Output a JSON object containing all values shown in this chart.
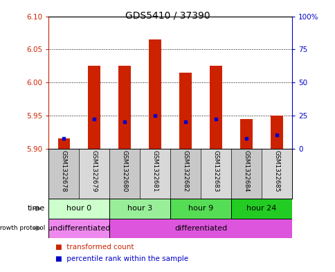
{
  "title": "GDS5410 / 37390",
  "samples": [
    "GSM1322678",
    "GSM1322679",
    "GSM1322680",
    "GSM1322681",
    "GSM1322682",
    "GSM1322683",
    "GSM1322684",
    "GSM1322685"
  ],
  "transformed_count": [
    5.915,
    6.025,
    6.025,
    6.065,
    6.015,
    6.025,
    5.945,
    5.95
  ],
  "percentile_rank": [
    5.915,
    5.945,
    5.94,
    5.95,
    5.94,
    5.945,
    5.915,
    5.92
  ],
  "bar_base": 5.9,
  "ylim": [
    5.9,
    6.1
  ],
  "yticks_left": [
    5.9,
    5.95,
    6.0,
    6.05,
    6.1
  ],
  "yticks_right": [
    0,
    25,
    50,
    75,
    100
  ],
  "time_groups": [
    {
      "label": "hour 0",
      "start": 0,
      "end": 2,
      "color": "#ccffcc"
    },
    {
      "label": "hour 3",
      "start": 2,
      "end": 4,
      "color": "#99ee99"
    },
    {
      "label": "hour 9",
      "start": 4,
      "end": 6,
      "color": "#55dd55"
    },
    {
      "label": "hour 24",
      "start": 6,
      "end": 8,
      "color": "#22cc22"
    }
  ],
  "protocol_groups": [
    {
      "label": "undifferentiated",
      "start": 0,
      "end": 2,
      "color": "#ee88ee"
    },
    {
      "label": "differentiated",
      "start": 2,
      "end": 8,
      "color": "#dd55dd"
    }
  ],
  "sample_colors": [
    "#c8c8c8",
    "#d8d8d8",
    "#c8c8c8",
    "#d8d8d8",
    "#c8c8c8",
    "#d8d8d8",
    "#c8c8c8",
    "#d8d8d8"
  ],
  "bar_color": "#cc2200",
  "blue_color": "#0000cc",
  "left_axis_color": "#cc2200",
  "right_axis_color": "#0000cc"
}
